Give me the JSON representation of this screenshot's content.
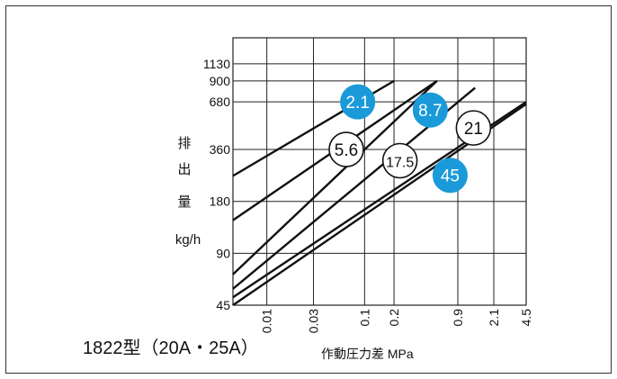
{
  "chart_data": {
    "type": "line",
    "title": "1822型（20A・25A）",
    "xlabel": "作動圧力差 MPa",
    "ylabel_chars": [
      "排",
      "出",
      "量"
    ],
    "ylabel_unit": "kg/h",
    "x_scale": "log",
    "y_scale": "log",
    "xlim": [
      0.0045,
      4.5
    ],
    "ylim": [
      45,
      1600
    ],
    "x_ticks": [
      {
        "value": 0.01,
        "label": "0.01"
      },
      {
        "value": 0.03,
        "label": "0.03"
      },
      {
        "value": 0.1,
        "label": "0.1"
      },
      {
        "value": 0.2,
        "label": "0.2"
      },
      {
        "value": 0.9,
        "label": "0.9"
      },
      {
        "value": 2.1,
        "label": "2.1"
      },
      {
        "value": 4.5,
        "label": "4.5"
      }
    ],
    "y_ticks": [
      {
        "value": 45,
        "label": "45"
      },
      {
        "value": 90,
        "label": "90"
      },
      {
        "value": 180,
        "label": "180"
      },
      {
        "value": 360,
        "label": "360"
      },
      {
        "value": 680,
        "label": "680"
      },
      {
        "value": 900,
        "label": "900"
      },
      {
        "value": 1130,
        "label": "1130"
      }
    ],
    "grid": true,
    "series": [
      {
        "name": "2.1",
        "badge_color": "#1a9ad9",
        "x": [
          0.0045,
          0.2
        ],
        "y": [
          253,
          900
        ],
        "badge": {
          "x": 0.085,
          "y": 680
        }
      },
      {
        "name": "5.6",
        "badge_color": "#ffffff",
        "x": [
          0.0045,
          0.55
        ],
        "y": [
          140,
          900
        ],
        "badge": {
          "x": 0.065,
          "y": 360
        }
      },
      {
        "name": "8.7",
        "badge_color": "#1a9ad9",
        "x": [
          0.0045,
          0.55
        ],
        "y": [
          68,
          900
        ],
        "badge": {
          "x": 0.47,
          "y": 610
        }
      },
      {
        "name": "17.5",
        "badge_color": "#ffffff",
        "x": [
          0.0045,
          1.35
        ],
        "y": [
          56,
          820
        ],
        "badge": {
          "x": 0.23,
          "y": 310
        }
      },
      {
        "name": "21",
        "badge_color": "#ffffff",
        "x": [
          0.0045,
          4.5
        ],
        "y": [
          50,
          680
        ],
        "badge": {
          "x": 1.3,
          "y": 480
        }
      },
      {
        "name": "45",
        "badge_color": "#1a9ad9",
        "x": [
          0.0045,
          4.5
        ],
        "y": [
          45,
          660
        ],
        "badge": {
          "x": 0.75,
          "y": 255
        }
      }
    ]
  }
}
